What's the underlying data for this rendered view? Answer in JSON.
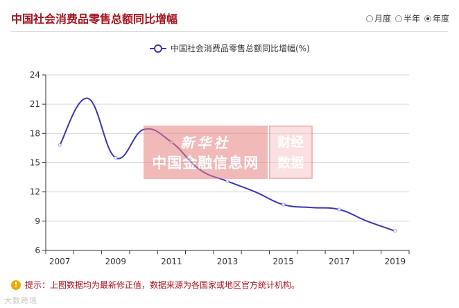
{
  "header": {
    "title": "中国社会消费品零售总额同比增幅",
    "period_options": [
      {
        "label": "月度",
        "checked": false
      },
      {
        "label": "半年",
        "checked": false
      },
      {
        "label": "年度",
        "checked": true
      }
    ]
  },
  "chart_data": {
    "type": "line",
    "legend": "中国社会消费品零售总额同比增幅(%)",
    "legend_position": "top-center",
    "x": [
      2007,
      2008,
      2009,
      2010,
      2011,
      2012,
      2013,
      2014,
      2015,
      2016,
      2017,
      2018,
      2019
    ],
    "x_tick_labels": [
      "2007",
      "2009",
      "2011",
      "2013",
      "2015",
      "2017",
      "2019"
    ],
    "series": [
      {
        "name": "中国社会消费品零售总额同比增幅(%)",
        "values": [
          16.8,
          21.6,
          15.5,
          18.4,
          17.1,
          14.3,
          13.1,
          12.0,
          10.7,
          10.4,
          10.2,
          9.0,
          8.0
        ],
        "color": "#3b35b5"
      }
    ],
    "ylim": [
      6,
      24
    ],
    "y_ticks": [
      6,
      9,
      12,
      15,
      18,
      21,
      24
    ],
    "grid": true
  },
  "watermark": {
    "line1": "新华社",
    "line2": "中国金融信息网",
    "side_top": "财经",
    "side_bottom": "数据"
  },
  "footer": {
    "notice": "提示：上图数据均为最新修正值，数据来源为各国家或地区官方统计机构。",
    "icon": "exclamation-icon",
    "logo_text": "大数跨境"
  }
}
